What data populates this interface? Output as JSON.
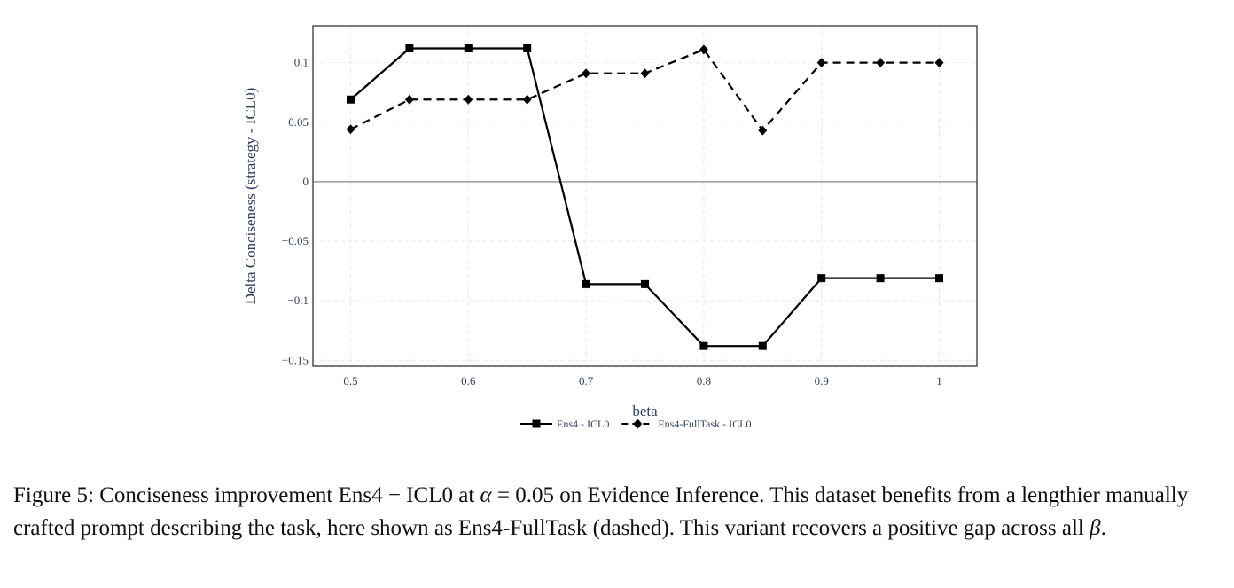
{
  "chart_data": {
    "type": "line",
    "xlabel": "beta",
    "ylabel": "Delta Conciseness (strategy - ICL0)",
    "xlim": [
      0.468,
      1.032
    ],
    "ylim": [
      -0.155,
      0.131
    ],
    "x_ticks": [
      0.5,
      0.6,
      0.7,
      0.8,
      0.9,
      1.0
    ],
    "x_tick_labels": [
      "0.5",
      "0.6",
      "0.7",
      "0.8",
      "0.9",
      "1"
    ],
    "y_ticks": [
      0.1,
      0.05,
      0,
      -0.05,
      -0.1,
      -0.15
    ],
    "y_tick_labels": [
      "0.1",
      "0.05",
      "0",
      "−0.05",
      "−0.1",
      "−0.15"
    ],
    "grid": true,
    "zero_line": true,
    "legend_position": "bottom",
    "x": [
      0.5,
      0.55,
      0.6,
      0.65,
      0.7,
      0.75,
      0.8,
      0.85,
      0.9,
      0.95,
      1.0
    ],
    "series": [
      {
        "name": "Ens4 - ICL0",
        "style": "solid",
        "marker": "square",
        "color": "#000000",
        "values": [
          0.069,
          0.112,
          0.112,
          0.112,
          -0.086,
          -0.086,
          -0.138,
          -0.138,
          -0.081,
          -0.081,
          -0.081
        ]
      },
      {
        "name": "Ens4-FullTask - ICL0",
        "style": "dashed",
        "marker": "diamond",
        "color": "#000000",
        "values": [
          0.044,
          0.069,
          0.069,
          0.069,
          0.091,
          0.091,
          0.111,
          0.043,
          0.1,
          0.1,
          0.1
        ]
      }
    ]
  },
  "caption": {
    "prefix": "Figure 5: Conciseness improvement Ens4 − ICL0 at ",
    "alpha_symbol": "α",
    "alpha_value": " = 0.05",
    "middle": " on Evidence Inference. This dataset benefits from a lengthier manually crafted prompt describing the task, here shown as Ens4-FullTask (dashed). This variant recovers a positive gap across all ",
    "beta_symbol": "β",
    "suffix": "."
  }
}
